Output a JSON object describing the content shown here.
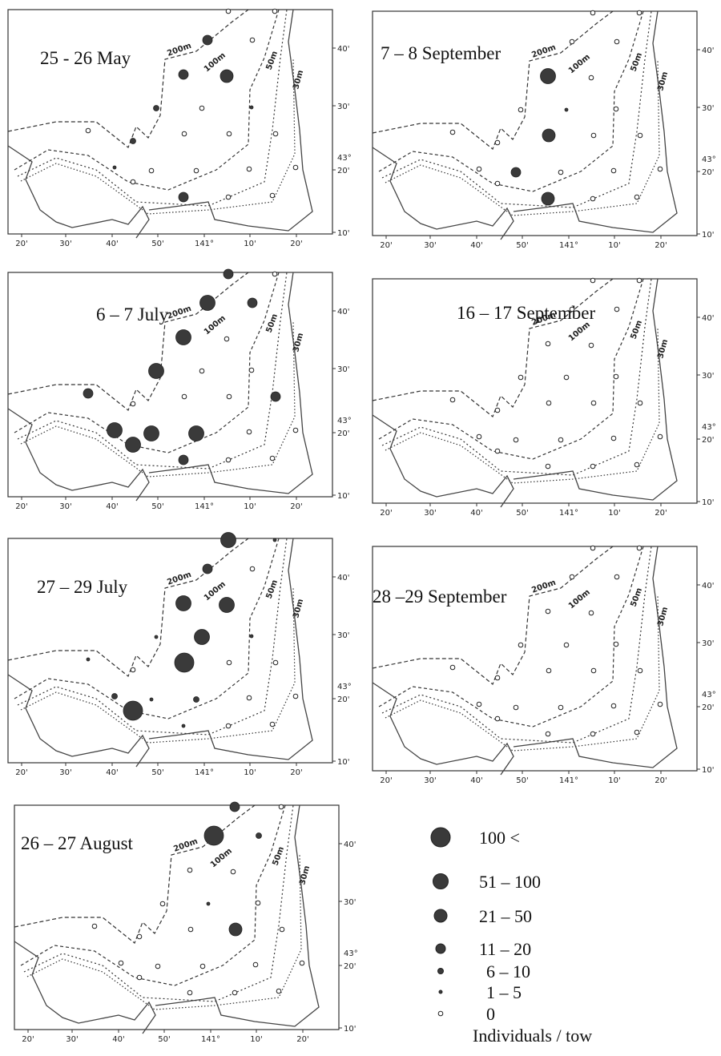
{
  "panels": [
    {
      "title": "25 - 26 May",
      "stations": [
        6,
        6,
        3,
        6,
        3,
        2,
        4,
        6,
        5,
        4,
        6,
        6,
        6,
        6,
        5,
        6,
        6,
        6,
        6,
        6,
        3,
        6,
        6
      ]
    },
    {
      "title": "7 – 8 September",
      "stations": [
        6,
        6,
        6,
        6,
        1,
        6,
        6,
        5,
        6,
        6,
        2,
        6,
        6,
        6,
        6,
        6,
        3,
        6,
        6,
        6,
        2,
        6,
        6
      ]
    },
    {
      "title": "6 – 7 July",
      "stations": [
        3,
        6,
        1,
        3,
        1,
        6,
        1,
        6,
        6,
        6,
        6,
        6,
        3,
        3,
        1,
        1,
        1,
        1,
        6,
        6,
        3,
        6,
        6
      ]
    },
    {
      "title": "16 – 17 September",
      "stations": [
        6,
        6,
        6,
        6,
        6,
        6,
        6,
        6,
        6,
        6,
        6,
        6,
        6,
        6,
        6,
        6,
        6,
        6,
        6,
        6,
        6,
        6,
        6
      ]
    },
    {
      "title": "27 – 29 July",
      "stations": [
        1,
        5,
        3,
        6,
        1,
        1,
        5,
        1,
        5,
        6,
        0,
        6,
        6,
        5,
        4,
        0,
        5,
        4,
        6,
        6,
        5,
        6,
        6
      ]
    },
    {
      "title": "28 –29 September",
      "stations": [
        6,
        6,
        6,
        6,
        6,
        6,
        6,
        6,
        6,
        6,
        6,
        6,
        6,
        6,
        6,
        6,
        6,
        6,
        6,
        6,
        6,
        6,
        6
      ]
    },
    {
      "title": "26 – 27 August",
      "stations": [
        3,
        6,
        0,
        4,
        6,
        6,
        6,
        5,
        6,
        6,
        6,
        2,
        6,
        6,
        6,
        6,
        6,
        6,
        6,
        6,
        6,
        6,
        6
      ]
    }
  ],
  "x_ticks": [
    "20'",
    "30'",
    "40'",
    "50'",
    "141°",
    "10'",
    "20'"
  ],
  "y_ticks": [
    "40'",
    "30'",
    "20'",
    "10'"
  ],
  "lat_label": "43°",
  "contour_labels": [
    "200m",
    "100m",
    "50m",
    "30m"
  ],
  "legend": {
    "classes": [
      "100 <",
      "51 – 100",
      "21 – 50",
      "11 – 20",
      "6 – 10",
      "1 – 5",
      "0"
    ],
    "title": "Individuals / tow"
  }
}
